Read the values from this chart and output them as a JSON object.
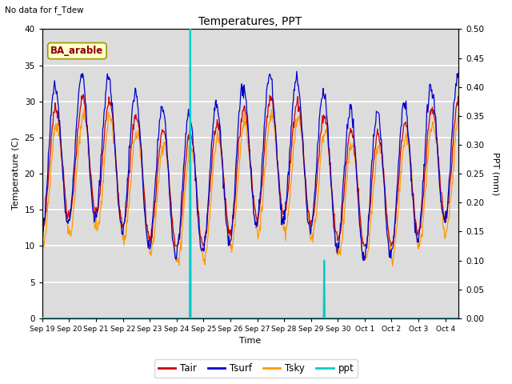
{
  "title": "Temperatures, PPT",
  "subtitle": "No data for f_Tdew",
  "annotation": "BA_arable",
  "xlabel": "Time",
  "ylabel_left": "Temperature (C)",
  "ylabel_right": "PPT (mm)",
  "ylim_left": [
    0,
    40
  ],
  "ylim_right": [
    0,
    0.5
  ],
  "bg_color": "#dcdcdc",
  "grid_color": "white",
  "colors": {
    "Tair": "#cc0000",
    "Tsurf": "#0000cc",
    "Tsky": "#ff9900",
    "ppt": "#00cccc"
  },
  "xtick_labels": [
    "Sep 19",
    "Sep 20",
    "Sep 21",
    "Sep 22",
    "Sep 23",
    "Sep 24",
    "Sep 25",
    "Sep 26",
    "Sep 27",
    "Sep 28",
    "Sep 29",
    "Sep 30",
    "Oct 1",
    "Oct 2",
    "Oct 3",
    "Oct 4"
  ],
  "yticks_right": [
    0.0,
    0.05,
    0.1,
    0.15,
    0.2,
    0.25,
    0.3,
    0.35,
    0.4,
    0.45,
    0.5
  ],
  "yticks_left": [
    0,
    5,
    10,
    15,
    20,
    25,
    30,
    35,
    40
  ],
  "ppt_spike1_day": 5.5,
  "ppt_spike1_val": 0.5,
  "ppt_spike2_day": 10.5,
  "ppt_spike2_val": 0.1,
  "n_days": 15.5,
  "figsize": [
    6.4,
    4.8
  ],
  "dpi": 100
}
